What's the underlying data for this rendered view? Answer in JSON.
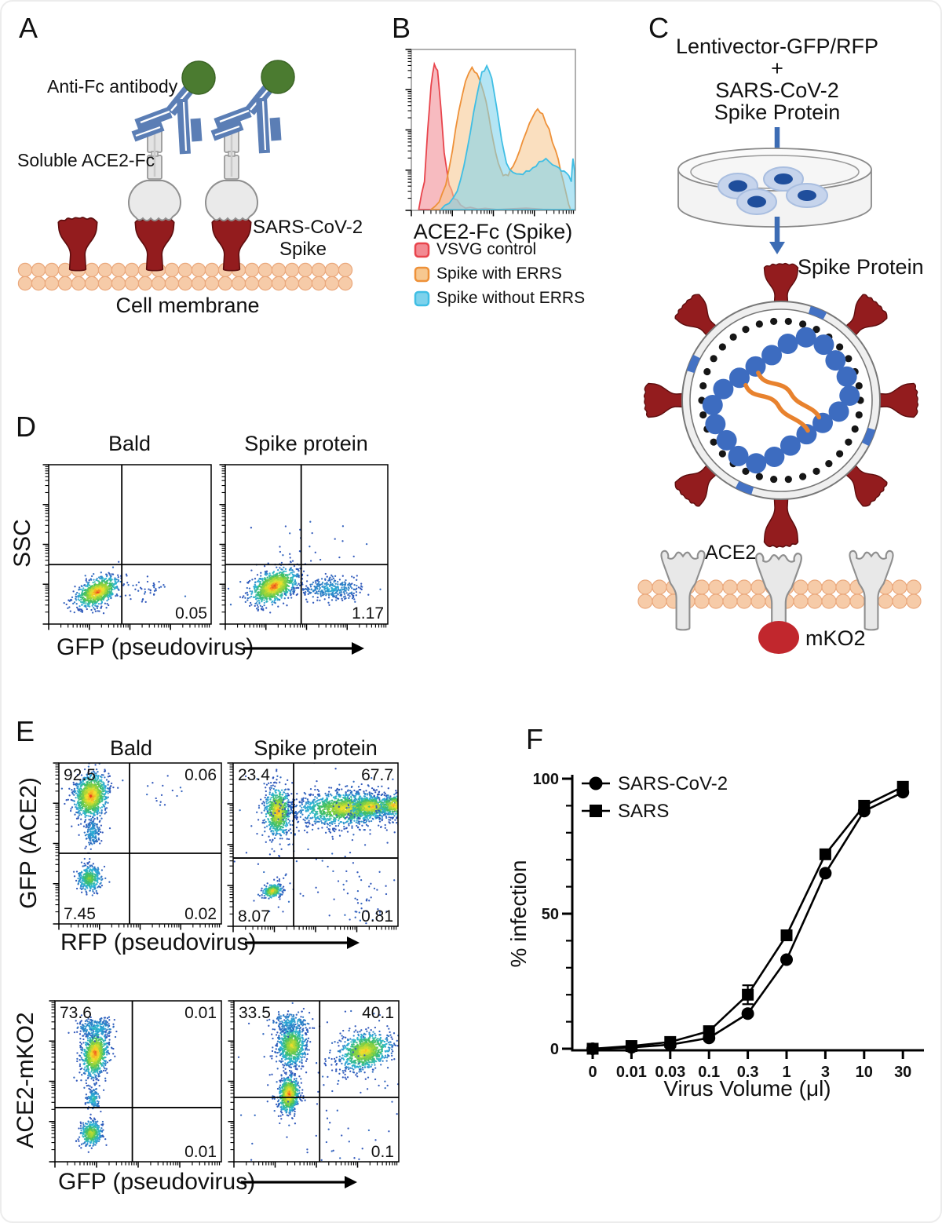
{
  "panels": {
    "A": {
      "letter": "A",
      "labels": {
        "antibody": "Anti-Fc antibody",
        "soluble": "Soluble ACE2-Fc",
        "spike_line1": "SARS-CoV-2",
        "spike_line2": "Spike",
        "membrane": "Cell membrane"
      },
      "colors": {
        "spike": "#931c1e",
        "antibody_blue": "#5b7eb5",
        "tag_green": "#4b7b30",
        "membrane": "#f6cba8"
      }
    },
    "B": {
      "letter": "B"
    },
    "C": {
      "letter": "C",
      "top_line1": "Lentivector-GFP/RFP",
      "top_line2": "+",
      "top_line3": "SARS-CoV-2",
      "top_line4": "Spike Protein",
      "spike_label": "Spike Protein",
      "ace2_label": "ACE2",
      "mko2_label": "mKO2",
      "colors": {
        "arrow_blue": "#3c6cb4",
        "capsid_beads": "#3d6cc0",
        "rna_orange": "#e8822e",
        "mko2_red": "#c1272d"
      }
    },
    "D": {
      "letter": "D"
    },
    "E": {
      "letter": "E"
    },
    "F": {
      "letter": "F"
    }
  },
  "chart_data": [
    {
      "type": "area",
      "panel": "B",
      "subtype": "flow-histogram-overlay",
      "xlabel": "ACE2-Fc (Spike)",
      "grid": false,
      "legend_position": "below",
      "series": [
        {
          "name": "VSVG control",
          "stroke": "#e8444c",
          "fill": "#f28a92",
          "peaks": [
            {
              "x_frac": 0.14,
              "height_frac": 0.94
            }
          ]
        },
        {
          "name": "Spike with ERRS",
          "stroke": "#ee9139",
          "fill": "#f7c890",
          "peaks": [
            {
              "x_frac": 0.38,
              "height_frac": 0.92
            },
            {
              "x_frac": 0.77,
              "height_frac": 0.65
            }
          ]
        },
        {
          "name": "Spike without ERRS",
          "stroke": "#3fbee4",
          "fill": "#7dd2ec",
          "peaks": [
            {
              "x_frac": 0.46,
              "height_frac": 0.93
            },
            {
              "x_frac": 0.82,
              "height_frac": 0.33
            }
          ]
        }
      ]
    },
    {
      "type": "scatter",
      "panel": "D",
      "subtype": "flow-density-quadrant",
      "xlabel": "GFP (pseudovirus)",
      "ylabel": "SSC",
      "plots": [
        {
          "title": "Bald",
          "quadrants": {
            "lr": "0.05"
          }
        },
        {
          "title": "Spike protein",
          "quadrants": {
            "lr": "1.17"
          }
        }
      ]
    },
    {
      "type": "scatter",
      "panel": "E-top",
      "subtype": "flow-density-quadrant",
      "xlabel": "RFP (pseudovirus)",
      "ylabel": "GFP (ACE2)",
      "plots": [
        {
          "title": "Bald",
          "quadrants": {
            "ul": "92.5",
            "ur": "0.06",
            "ll": "7.45",
            "lr": "0.02"
          }
        },
        {
          "title": "Spike protein",
          "quadrants": {
            "ul": "23.4",
            "ur": "67.7",
            "ll": "8.07",
            "lr": "0.81"
          }
        }
      ]
    },
    {
      "type": "scatter",
      "panel": "E-bottom",
      "subtype": "flow-density-quadrant",
      "xlabel": "GFP (pseudovirus)",
      "ylabel": "ACE2-mKO2",
      "plots": [
        {
          "title": "Bald",
          "quadrants": {
            "ul": "73.6",
            "ur": "0.01",
            "lr": "0.01"
          }
        },
        {
          "title": "Spike protein",
          "quadrants": {
            "ul": "33.5",
            "ur": "40.1",
            "lr": "0.1"
          }
        }
      ]
    },
    {
      "type": "line",
      "panel": "F",
      "xlabel": "Virus Volume (μl)",
      "ylabel": "% infection",
      "x_labels": [
        "0",
        "0.01",
        "0.03",
        "0.1",
        "0.3",
        "1",
        "3",
        "10",
        "30"
      ],
      "ylim": [
        0,
        100
      ],
      "yticks": [
        0,
        50,
        100
      ],
      "y_minor_step": 10,
      "grid": false,
      "legend_position": "top-left",
      "series": [
        {
          "name": "SARS-CoV-2",
          "marker": "circle",
          "color": "#000000",
          "values": [
            0,
            0.5,
            1.5,
            4,
            13,
            33,
            65,
            88,
            95
          ]
        },
        {
          "name": "SARS",
          "marker": "square",
          "color": "#000000",
          "values": [
            0,
            1,
            2.5,
            6.5,
            20,
            42,
            72,
            90,
            97
          ],
          "error": [
            0,
            0,
            0,
            0,
            3.5,
            0,
            0,
            0,
            0
          ]
        }
      ]
    }
  ]
}
